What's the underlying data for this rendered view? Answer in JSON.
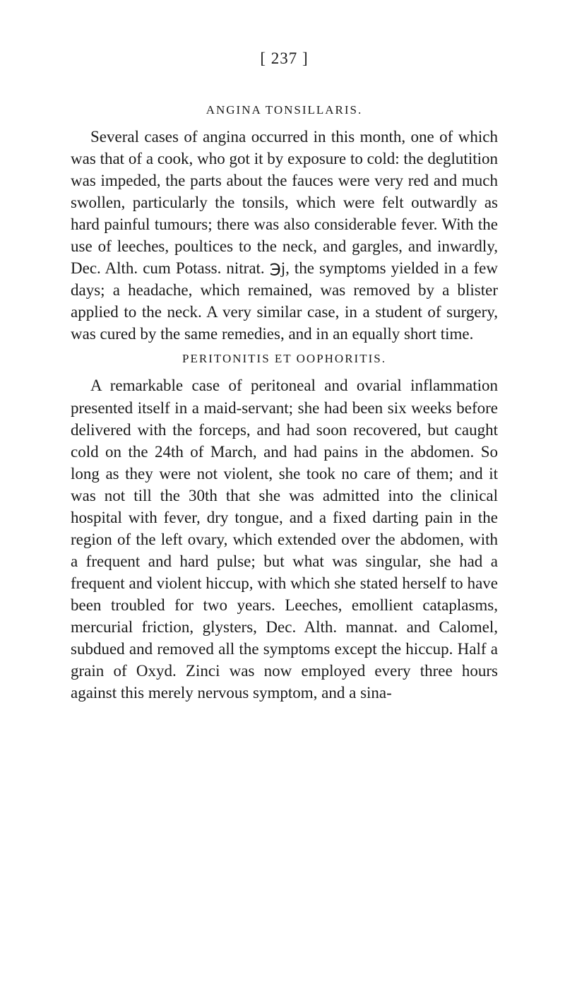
{
  "page": {
    "number": "[ 237 ]",
    "background_color": "#ffffff",
    "text_color": "#1a1a1a"
  },
  "sections": [
    {
      "heading": "ANGINA TONSILLARIS.",
      "paragraph": "Several cases of angina occurred in this month, one of which was that of a cook, who got it by exposure to cold: the deglutition was impeded, the parts about the fauces were very red and much swollen, particularly the tonsils, which were felt outwardly as hard painful tumours; there was also considerable fever. With the use of leeches, poultices to the neck, and gargles, and inwardly, Dec. Alth. cum Potass. nitrat. ℈j, the symptoms yielded in a few days; a headache, which remained, was removed by a blister applied to the neck. A very similar case, in a student of surgery, was cured by the same remedies, and in an equally short time."
    },
    {
      "heading": "PERITONITIS ET OOPHORITIS.",
      "paragraph": "A remarkable case of peritoneal and ovarial inflammation presented itself in a maid-servant; she had been six weeks before delivered with the forceps, and had soon recovered, but caught cold on the 24th of March, and had pains in the abdomen. So long as they were not violent, she took no care of them; and it was not till the 30th that she was admitted into the clinical hospital with fever, dry tongue, and a fixed darting pain in the region of the left ovary, which extended over the abdomen, with a frequent and hard pulse; but what was singular, she had a frequent and violent hiccup, with which she stated herself to have been troubled for two years. Leeches, emollient cataplasms, mercurial friction, glysters, Dec. Alth. mannat. and Calomel, subdued and removed all the symptoms except the hiccup. Half a grain of Oxyd. Zinci was now employed every three hours against this merely nervous symptom, and a sina-"
    }
  ],
  "typography": {
    "body_fontsize": 23,
    "heading_fontsize": 17,
    "page_number_fontsize": 23,
    "line_height": 1.35,
    "font_family": "Georgia, Times New Roman, serif"
  }
}
